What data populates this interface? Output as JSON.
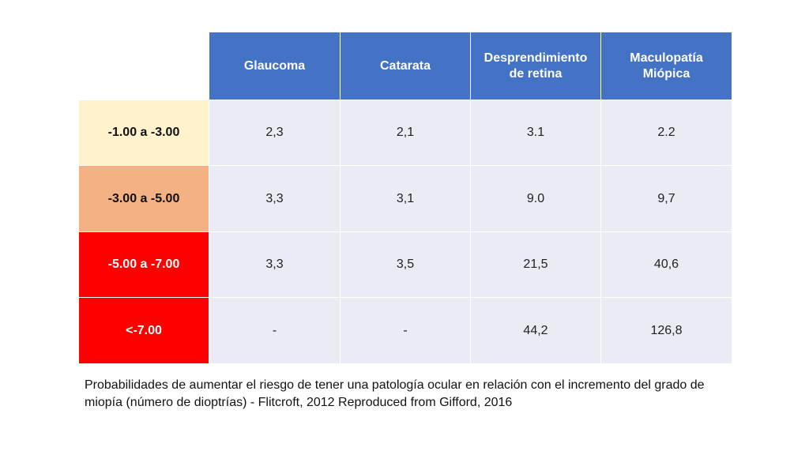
{
  "table": {
    "columns": [
      "Glaucoma",
      "Catarata",
      "Desprendimiento de retina",
      "Maculopatía Miópica"
    ],
    "rows": [
      {
        "label": "-1.00 a -3.00",
        "color": "#fff2cc",
        "values": [
          "2,3",
          "2,1",
          "3.1",
          "2.2"
        ]
      },
      {
        "label": "-3.00 a -5.00",
        "color": "#f4b183",
        "values": [
          "3,3",
          "3,1",
          "9.0",
          "9,7"
        ]
      },
      {
        "label": "-5.00 a -7.00",
        "color": "#ff0000",
        "values": [
          "3,3",
          "3,5",
          "21,5",
          "40,6"
        ]
      },
      {
        "label": "<-7.00",
        "color": "#ff0000",
        "values": [
          "-",
          "-",
          "44,2",
          "126,8"
        ]
      }
    ]
  },
  "caption": "Probabilidades de aumentar el riesgo de tener una patología ocular en relación con el incremento del grado de miopía  (número de dioptrías) - Flitcroft, 2012 Reproduced from Gifford, 2016",
  "colors": {
    "header": "#4472c4",
    "cell": "#e9ebf5"
  }
}
